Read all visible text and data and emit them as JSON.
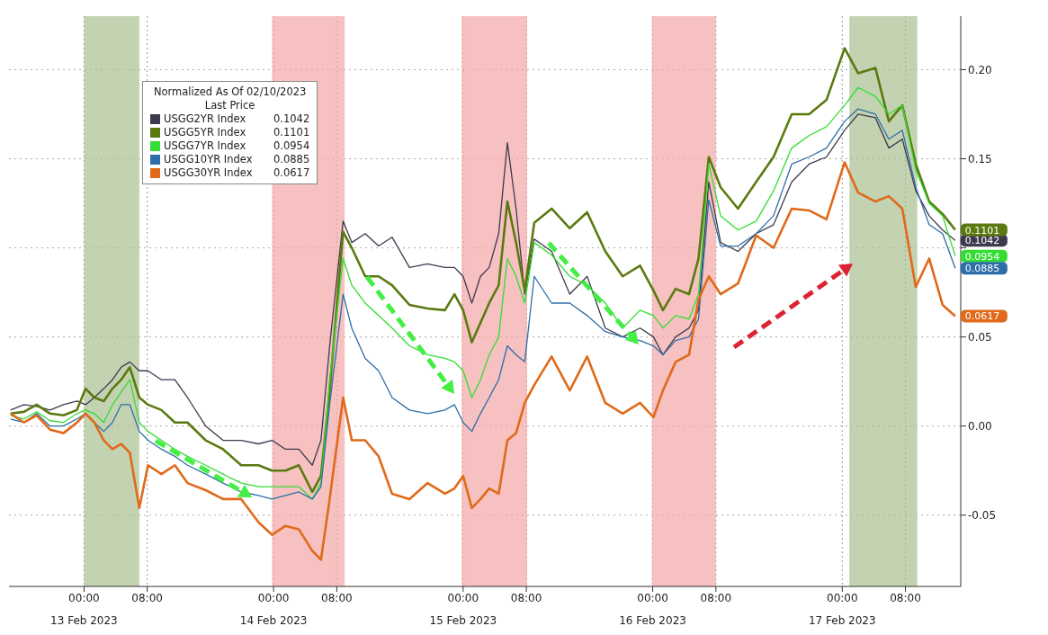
{
  "chart_data": {
    "type": "line",
    "legend_title": "Normalized As Of 02/10/2023\nLast Price",
    "legend": "top left",
    "grid": true,
    "xlim": [
      "2023-02-12T14:30",
      "2023-02-17T15:00"
    ],
    "xticks": [
      {
        "value": "2023-02-13T00:00",
        "label": "00:00"
      },
      {
        "value": "2023-02-13T08:00",
        "label": "08:00"
      },
      {
        "value": "2023-02-14T00:00",
        "label": "00:00"
      },
      {
        "value": "2023-02-14T08:00",
        "label": "08:00"
      },
      {
        "value": "2023-02-15T00:00",
        "label": "00:00"
      },
      {
        "value": "2023-02-15T08:00",
        "label": "08:00"
      },
      {
        "value": "2023-02-16T00:00",
        "label": "00:00"
      },
      {
        "value": "2023-02-16T08:00",
        "label": "08:00"
      },
      {
        "value": "2023-02-17T00:00",
        "label": "00:00"
      },
      {
        "value": "2023-02-17T08:00",
        "label": "08:00"
      }
    ],
    "x2lim": [
      "2023-02-12T14:30",
      "2023-02-17T15:00"
    ],
    "x2ticks": [
      {
        "value": "2023-02-13",
        "label": "13 Feb 2023"
      },
      {
        "value": "2023-02-14",
        "label": "14 Feb 2023"
      },
      {
        "value": "2023-02-15",
        "label": "15 Feb 2023"
      },
      {
        "value": "2023-02-16",
        "label": "16 Feb 2023"
      },
      {
        "value": "2023-02-17",
        "label": "17 Feb 2023"
      }
    ],
    "ylim": [
      -0.09,
      0.23
    ],
    "yticks": [
      {
        "value": -0.05,
        "label": "-0.05"
      },
      {
        "value": 0,
        "label": "0.00"
      },
      {
        "value": 0.05,
        "label": "0.05"
      },
      {
        "value": 0.1,
        "label": null
      },
      {
        "value": 0.15,
        "label": "0.15"
      },
      {
        "value": 0.2,
        "label": "0.20"
      }
    ],
    "x": [
      "2023-02-12T14:42",
      "2023-02-12T16:24",
      "2023-02-12T18:00",
      "2023-02-12T19:42",
      "2023-02-12T21:24",
      "2023-02-12T23:06",
      "2023-02-13T00:12",
      "2023-02-13T01:18",
      "2023-02-13T02:30",
      "2023-02-13T03:36",
      "2023-02-13T04:42",
      "2023-02-13T05:48",
      "2023-02-13T07:00",
      "2023-02-13T08:06",
      "2023-02-13T09:48",
      "2023-02-13T11:30",
      "2023-02-13T13:06",
      "2023-02-13T15:24",
      "2023-02-13T17:36",
      "2023-02-13T19:54",
      "2023-02-13T22:06",
      "2023-02-13T23:48",
      "2023-02-14T01:30",
      "2023-02-14T03:12",
      "2023-02-14T04:54",
      "2023-02-14T06:00",
      "2023-02-14T07:06",
      "2023-02-14T08:48",
      "2023-02-14T09:54",
      "2023-02-14T11:36",
      "2023-02-14T13:18",
      "2023-02-14T15:00",
      "2023-02-14T17:12",
      "2023-02-14T19:30",
      "2023-02-14T21:42",
      "2023-02-14T22:54",
      "2023-02-15T00:00",
      "2023-02-15T01:06",
      "2023-02-15T02:12",
      "2023-02-15T03:18",
      "2023-02-15T04:30",
      "2023-02-15T05:36",
      "2023-02-15T06:42",
      "2023-02-15T07:48",
      "2023-02-15T09:00",
      "2023-02-15T11:12",
      "2023-02-15T13:30",
      "2023-02-15T15:42",
      "2023-02-15T18:00",
      "2023-02-15T20:12",
      "2023-02-15T22:24",
      "2023-02-16T00:06",
      "2023-02-16T01:18",
      "2023-02-16T02:54",
      "2023-02-16T04:36",
      "2023-02-16T05:48",
      "2023-02-16T07:06",
      "2023-02-16T08:36",
      "2023-02-16T10:48",
      "2023-02-16T13:06",
      "2023-02-16T15:18",
      "2023-02-16T17:36",
      "2023-02-16T19:48",
      "2023-02-16T22:00",
      "2023-02-17T00:18",
      "2023-02-17T02:00",
      "2023-02-17T04:12",
      "2023-02-17T05:54",
      "2023-02-17T07:36",
      "2023-02-17T09:18",
      "2023-02-17T11:00",
      "2023-02-17T12:42",
      "2023-02-17T14:18"
    ],
    "series": [
      {
        "name": "USGG2YR Index",
        "color": "#3d3a4e",
        "values": [
          0.009,
          0.012,
          0.011,
          0.009,
          0.012,
          0.014,
          0.012,
          0.016,
          0.021,
          0.026,
          0.033,
          0.036,
          0.031,
          0.031,
          0.026,
          0.026,
          0.016,
          0.0,
          -0.008,
          -0.008,
          -0.01,
          -0.008,
          -0.013,
          -0.013,
          -0.022,
          -0.008,
          0.045,
          0.115,
          0.103,
          0.108,
          0.101,
          0.106,
          0.089,
          0.091,
          0.089,
          0.089,
          0.084,
          0.069,
          0.084,
          0.089,
          0.108,
          0.159,
          0.122,
          0.074,
          0.105,
          0.098,
          0.074,
          0.084,
          0.055,
          0.05,
          0.055,
          0.05,
          0.04,
          0.05,
          0.055,
          0.065,
          0.137,
          0.103,
          0.098,
          0.108,
          0.113,
          0.137,
          0.147,
          0.151,
          0.166,
          0.175,
          0.173,
          0.156,
          0.161,
          0.132,
          0.118,
          0.11,
          0.1042
        ],
        "value_labels": [
          null,
          null,
          null,
          null,
          null,
          null,
          null,
          null,
          null,
          null,
          null,
          null,
          null,
          null,
          null,
          null,
          null,
          null,
          null,
          null,
          null,
          null,
          null,
          null,
          null,
          null,
          null,
          null,
          null,
          null,
          null,
          null,
          null,
          null,
          null,
          null,
          null,
          null,
          null,
          null,
          null,
          null,
          null,
          null,
          null,
          null,
          null,
          null,
          null,
          null,
          null,
          null,
          null,
          null,
          null,
          null,
          null,
          null,
          null,
          null,
          null,
          null,
          null,
          null,
          null,
          null,
          null,
          null,
          null,
          null,
          null,
          null,
          "0.1042"
        ]
      },
      {
        "name": "USGG5YR Index",
        "color": "#5a7a10",
        "values": [
          0.007,
          0.008,
          0.012,
          0.007,
          0.006,
          0.009,
          0.021,
          0.016,
          0.014,
          0.021,
          0.026,
          0.033,
          0.016,
          0.012,
          0.009,
          0.002,
          0.002,
          -0.008,
          -0.013,
          -0.022,
          -0.022,
          -0.025,
          -0.025,
          -0.022,
          -0.037,
          -0.028,
          0.02,
          0.109,
          0.1,
          0.084,
          0.084,
          0.079,
          0.068,
          0.066,
          0.065,
          0.074,
          0.065,
          0.047,
          0.058,
          0.069,
          0.079,
          0.126,
          0.103,
          0.076,
          0.114,
          0.122,
          0.111,
          0.12,
          0.098,
          0.084,
          0.09,
          0.076,
          0.065,
          0.077,
          0.074,
          0.094,
          0.151,
          0.134,
          0.122,
          0.137,
          0.151,
          0.175,
          0.175,
          0.183,
          0.212,
          0.198,
          0.201,
          0.171,
          0.18,
          0.147,
          0.126,
          0.119,
          0.1101
        ],
        "value_labels": [
          null,
          null,
          null,
          null,
          null,
          null,
          null,
          null,
          null,
          null,
          null,
          null,
          null,
          null,
          null,
          null,
          null,
          null,
          null,
          null,
          null,
          null,
          null,
          null,
          null,
          null,
          null,
          null,
          null,
          null,
          null,
          null,
          null,
          null,
          null,
          null,
          null,
          null,
          null,
          null,
          null,
          null,
          null,
          null,
          null,
          null,
          null,
          null,
          null,
          null,
          null,
          null,
          null,
          null,
          null,
          null,
          null,
          null,
          null,
          null,
          null,
          null,
          null,
          null,
          null,
          null,
          null,
          null,
          null,
          null,
          null,
          null,
          "0.1101"
        ]
      },
      {
        "name": "USGG7YR Index",
        "color": "#33dd33",
        "values": [
          0.006,
          0.004,
          0.008,
          0.003,
          0.002,
          0.007,
          0.009,
          0.007,
          0.002,
          0.012,
          0.019,
          0.026,
          0.002,
          -0.003,
          -0.008,
          -0.013,
          -0.017,
          -0.022,
          -0.027,
          -0.032,
          -0.034,
          -0.034,
          -0.034,
          -0.034,
          -0.041,
          -0.032,
          0.026,
          0.094,
          0.079,
          0.069,
          0.062,
          0.055,
          0.045,
          0.04,
          0.038,
          0.036,
          0.031,
          0.016,
          0.026,
          0.04,
          0.05,
          0.094,
          0.084,
          0.069,
          0.103,
          0.096,
          0.084,
          0.079,
          0.069,
          0.055,
          0.065,
          0.062,
          0.055,
          0.062,
          0.06,
          0.074,
          0.147,
          0.118,
          0.11,
          0.115,
          0.132,
          0.156,
          0.163,
          0.168,
          0.18,
          0.19,
          0.185,
          0.175,
          0.18,
          0.144,
          0.125,
          0.118,
          0.0954
        ],
        "value_labels": [
          null,
          null,
          null,
          null,
          null,
          null,
          null,
          null,
          null,
          null,
          null,
          null,
          null,
          null,
          null,
          null,
          null,
          null,
          null,
          null,
          null,
          null,
          null,
          null,
          null,
          null,
          null,
          null,
          null,
          null,
          null,
          null,
          null,
          null,
          null,
          null,
          null,
          null,
          null,
          null,
          null,
          null,
          null,
          null,
          null,
          null,
          null,
          null,
          null,
          null,
          null,
          null,
          null,
          null,
          null,
          null,
          null,
          null,
          null,
          null,
          null,
          null,
          null,
          null,
          null,
          null,
          null,
          null,
          null,
          null,
          null,
          null,
          "0.0954"
        ]
      },
      {
        "name": "USGG10YR Index",
        "color": "#2e6ea8",
        "values": [
          0.004,
          0.002,
          0.007,
          0.0,
          0.0,
          0.004,
          0.007,
          0.002,
          -0.003,
          0.002,
          0.012,
          0.012,
          -0.003,
          -0.008,
          -0.013,
          -0.017,
          -0.022,
          -0.027,
          -0.032,
          -0.037,
          -0.039,
          -0.041,
          -0.039,
          -0.037,
          -0.041,
          -0.034,
          0.012,
          0.074,
          0.055,
          0.038,
          0.031,
          0.016,
          0.009,
          0.007,
          0.009,
          0.012,
          0.002,
          -0.003,
          0.007,
          0.016,
          0.026,
          0.045,
          0.04,
          0.036,
          0.084,
          0.069,
          0.069,
          0.062,
          0.053,
          0.05,
          0.048,
          0.045,
          0.04,
          0.048,
          0.05,
          0.06,
          0.127,
          0.101,
          0.101,
          0.108,
          0.118,
          0.147,
          0.151,
          0.156,
          0.171,
          0.178,
          0.175,
          0.161,
          0.166,
          0.134,
          0.113,
          0.108,
          0.0885
        ],
        "value_labels": [
          null,
          null,
          null,
          null,
          null,
          null,
          null,
          null,
          null,
          null,
          null,
          null,
          null,
          null,
          null,
          null,
          null,
          null,
          null,
          null,
          null,
          null,
          null,
          null,
          null,
          null,
          null,
          null,
          null,
          null,
          null,
          null,
          null,
          null,
          null,
          null,
          null,
          null,
          null,
          null,
          null,
          null,
          null,
          null,
          null,
          null,
          null,
          null,
          null,
          null,
          null,
          null,
          null,
          null,
          null,
          null,
          null,
          null,
          null,
          null,
          null,
          null,
          null,
          null,
          null,
          null,
          null,
          null,
          null,
          null,
          null,
          null,
          "0.0885"
        ]
      },
      {
        "name": "USGG30YR Index",
        "color": "#e06a1a",
        "values": [
          0.007,
          0.002,
          0.006,
          -0.002,
          -0.004,
          0.002,
          0.007,
          0.002,
          -0.008,
          -0.013,
          -0.01,
          -0.015,
          -0.046,
          -0.022,
          -0.027,
          -0.022,
          -0.032,
          -0.036,
          -0.041,
          -0.041,
          -0.054,
          -0.061,
          -0.056,
          -0.058,
          -0.07,
          -0.075,
          -0.041,
          0.016,
          -0.008,
          -0.008,
          -0.017,
          -0.038,
          -0.041,
          -0.032,
          -0.038,
          -0.035,
          -0.028,
          -0.046,
          -0.041,
          -0.035,
          -0.038,
          -0.008,
          -0.004,
          0.013,
          0.023,
          0.039,
          0.02,
          0.039,
          0.013,
          0.007,
          0.013,
          0.005,
          0.02,
          0.036,
          0.04,
          0.071,
          0.084,
          0.074,
          0.08,
          0.107,
          0.1,
          0.122,
          0.121,
          0.116,
          0.148,
          0.131,
          0.126,
          0.129,
          0.122,
          0.078,
          0.094,
          0.068,
          0.0617
        ],
        "value_labels": [
          null,
          null,
          null,
          null,
          null,
          null,
          null,
          null,
          null,
          null,
          null,
          null,
          null,
          null,
          null,
          null,
          null,
          null,
          null,
          null,
          null,
          null,
          null,
          null,
          null,
          null,
          null,
          null,
          null,
          null,
          null,
          null,
          null,
          null,
          null,
          null,
          null,
          null,
          null,
          null,
          null,
          null,
          null,
          null,
          null,
          null,
          null,
          null,
          null,
          null,
          null,
          null,
          null,
          null,
          null,
          null,
          null,
          null,
          null,
          null,
          null,
          null,
          null,
          null,
          null,
          null,
          null,
          null,
          null,
          null,
          null,
          null,
          "0.0617"
        ]
      }
    ],
    "bands": [
      {
        "axis": "x",
        "from": "2023-02-13T00:00",
        "to": "2023-02-13T07:00",
        "color": "#a9bf8e"
      },
      {
        "axis": "x",
        "from": "2023-02-13T23:48",
        "to": "2023-02-14T09:00",
        "color": "#f4a6a6"
      },
      {
        "axis": "x",
        "from": "2023-02-14T23:48",
        "to": "2023-02-15T08:06",
        "color": "#f4a6a6"
      },
      {
        "axis": "x",
        "from": "2023-02-15T23:54",
        "to": "2023-02-16T08:00",
        "color": "#f4a6a6"
      },
      {
        "axis": "x",
        "from": "2023-02-17T00:54",
        "to": "2023-02-17T09:30",
        "color": "#a9bf8e"
      }
    ]
  }
}
